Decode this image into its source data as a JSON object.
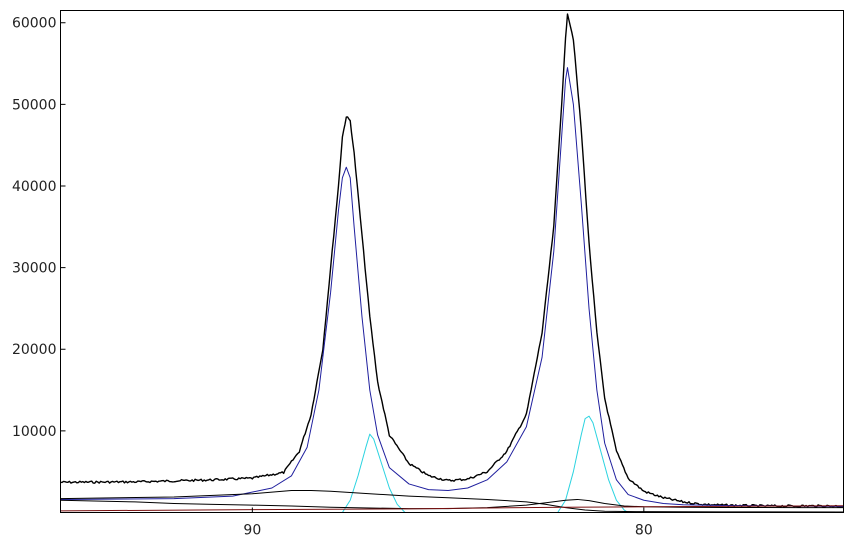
{
  "chart_data": {
    "type": "line",
    "title": "",
    "xlabel": "",
    "ylabel": "",
    "x_reversed": true,
    "xlim": [
      94.9,
      74.9
    ],
    "ylim": [
      0,
      61500
    ],
    "xticks": [
      90,
      80
    ],
    "yticks": [
      10000,
      20000,
      30000,
      40000,
      50000,
      60000
    ],
    "grid": false,
    "legend": "none",
    "series": [
      {
        "color": "#000000",
        "noisy": true,
        "points": [
          [
            94.9,
            3700
          ],
          [
            93,
            3750
          ],
          [
            91,
            4000
          ],
          [
            90,
            4200
          ],
          [
            89.2,
            4900
          ],
          [
            88.8,
            7500
          ],
          [
            88.5,
            12000
          ],
          [
            88.2,
            20000
          ],
          [
            88,
            30000
          ],
          [
            87.8,
            40000
          ],
          [
            87.7,
            46000
          ],
          [
            87.6,
            48500
          ],
          [
            87.5,
            48000
          ],
          [
            87.4,
            44000
          ],
          [
            87.2,
            34000
          ],
          [
            87,
            24000
          ],
          [
            86.8,
            16000
          ],
          [
            86.5,
            9500
          ],
          [
            86,
            6000
          ],
          [
            85.5,
            4500
          ],
          [
            85,
            3900
          ],
          [
            84.5,
            4100
          ],
          [
            84,
            5000
          ],
          [
            83.5,
            7500
          ],
          [
            83,
            12000
          ],
          [
            82.6,
            22000
          ],
          [
            82.3,
            35000
          ],
          [
            82.1,
            50000
          ],
          [
            82,
            58000
          ],
          [
            81.95,
            61200
          ],
          [
            81.8,
            58000
          ],
          [
            81.6,
            47000
          ],
          [
            81.4,
            33000
          ],
          [
            81.2,
            22000
          ],
          [
            81,
            14000
          ],
          [
            80.7,
            7500
          ],
          [
            80.4,
            4200
          ],
          [
            80,
            2600
          ],
          [
            79.5,
            1800
          ],
          [
            79,
            1300
          ],
          [
            78.5,
            1000
          ],
          [
            78,
            900
          ],
          [
            77,
            800
          ],
          [
            74.9,
            800
          ]
        ]
      },
      {
        "color": "#1f1f9e",
        "points": [
          [
            94.9,
            1600
          ],
          [
            92,
            1700
          ],
          [
            90.5,
            2000
          ],
          [
            89.5,
            3000
          ],
          [
            89,
            4500
          ],
          [
            88.6,
            8000
          ],
          [
            88.3,
            15000
          ],
          [
            88,
            27000
          ],
          [
            87.8,
            37000
          ],
          [
            87.7,
            41000
          ],
          [
            87.6,
            42300
          ],
          [
            87.5,
            41000
          ],
          [
            87.4,
            35000
          ],
          [
            87.2,
            24000
          ],
          [
            87,
            15000
          ],
          [
            86.8,
            9500
          ],
          [
            86.5,
            5500
          ],
          [
            86,
            3500
          ],
          [
            85.5,
            2800
          ],
          [
            85,
            2700
          ],
          [
            84.5,
            3000
          ],
          [
            84,
            4000
          ],
          [
            83.5,
            6200
          ],
          [
            83,
            10500
          ],
          [
            82.6,
            19000
          ],
          [
            82.3,
            32000
          ],
          [
            82.1,
            46000
          ],
          [
            82,
            53000
          ],
          [
            81.95,
            54500
          ],
          [
            81.8,
            50000
          ],
          [
            81.6,
            38000
          ],
          [
            81.4,
            25000
          ],
          [
            81.2,
            15000
          ],
          [
            81,
            8500
          ],
          [
            80.7,
            4000
          ],
          [
            80.4,
            2200
          ],
          [
            80,
            1500
          ],
          [
            79.5,
            1100
          ],
          [
            79,
            950
          ],
          [
            78,
            850
          ],
          [
            74.9,
            750
          ]
        ]
      },
      {
        "color": "#2bd3e0",
        "points": [
          [
            87.7,
            0
          ],
          [
            87.5,
            1500
          ],
          [
            87.3,
            4500
          ],
          [
            87.1,
            8000
          ],
          [
            87,
            9600
          ],
          [
            86.9,
            9000
          ],
          [
            86.7,
            6000
          ],
          [
            86.5,
            3000
          ],
          [
            86.3,
            1000
          ],
          [
            86.1,
            0
          ]
        ]
      },
      {
        "color": "#2bd3e0",
        "points": [
          [
            82.2,
            0
          ],
          [
            82,
            1500
          ],
          [
            81.8,
            5000
          ],
          [
            81.6,
            9500
          ],
          [
            81.5,
            11500
          ],
          [
            81.4,
            11800
          ],
          [
            81.3,
            11000
          ],
          [
            81.1,
            7500
          ],
          [
            80.9,
            4000
          ],
          [
            80.7,
            1500
          ],
          [
            80.5,
            300
          ],
          [
            80.4,
            0
          ]
        ]
      },
      {
        "color": "#000000",
        "points": [
          [
            94.9,
            1700
          ],
          [
            92,
            1900
          ],
          [
            90,
            2300
          ],
          [
            89,
            2700
          ],
          [
            88.5,
            2700
          ],
          [
            88,
            2600
          ],
          [
            87,
            2300
          ],
          [
            86,
            2000
          ],
          [
            85,
            1800
          ],
          [
            84,
            1600
          ],
          [
            83,
            1300
          ],
          [
            82.5,
            1000
          ],
          [
            82,
            600
          ],
          [
            81.5,
            300
          ],
          [
            81,
            150
          ],
          [
            80,
            100
          ],
          [
            78,
            80
          ],
          [
            74.9,
            60
          ]
        ]
      },
      {
        "color": "#000000",
        "points": [
          [
            94.9,
            1500
          ],
          [
            93,
            1300
          ],
          [
            92,
            1100
          ],
          [
            91,
            1000
          ],
          [
            90,
            900
          ],
          [
            89,
            800
          ],
          [
            88,
            650
          ],
          [
            87,
            550
          ],
          [
            86,
            480
          ],
          [
            85,
            480
          ],
          [
            84,
            600
          ],
          [
            83,
            900
          ],
          [
            82.5,
            1200
          ],
          [
            82,
            1500
          ],
          [
            81.7,
            1600
          ],
          [
            81.4,
            1450
          ],
          [
            81,
            1100
          ],
          [
            80.5,
            800
          ],
          [
            80,
            700
          ],
          [
            79,
            650
          ],
          [
            78,
            620
          ],
          [
            76,
            600
          ],
          [
            74.9,
            600
          ]
        ]
      },
      {
        "color": "#7a1010",
        "points": [
          [
            94.9,
            200
          ],
          [
            90,
            350
          ],
          [
            86,
            450
          ],
          [
            84,
            550
          ],
          [
            82,
            650
          ],
          [
            80,
            700
          ],
          [
            78,
            750
          ],
          [
            76,
            800
          ],
          [
            74.9,
            820
          ]
        ]
      }
    ]
  }
}
